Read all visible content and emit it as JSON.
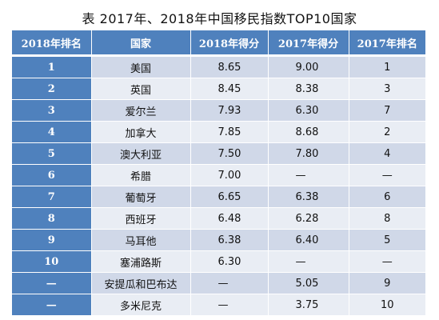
{
  "title": "表  2017年、2018年中国移民指数TOP10国家",
  "table": {
    "headers": [
      "2018年排名",
      "国家",
      "2018年得分",
      "2017年得分",
      "2017年排名"
    ],
    "rows": [
      {
        "rank2018": "1",
        "country": "美国",
        "score2018": "8.65",
        "score2017": "9.00",
        "rank2017": "1"
      },
      {
        "rank2018": "2",
        "country": "英国",
        "score2018": "8.45",
        "score2017": "8.38",
        "rank2017": "3"
      },
      {
        "rank2018": "3",
        "country": "爱尔兰",
        "score2018": "7.93",
        "score2017": "6.30",
        "rank2017": "7"
      },
      {
        "rank2018": "4",
        "country": "加拿大",
        "score2018": "7.85",
        "score2017": "8.68",
        "rank2017": "2"
      },
      {
        "rank2018": "5",
        "country": "澳大利亚",
        "score2018": "7.50",
        "score2017": "7.80",
        "rank2017": "4"
      },
      {
        "rank2018": "6",
        "country": "希腊",
        "score2018": "7.00",
        "score2017": "—",
        "rank2017": "—"
      },
      {
        "rank2018": "7",
        "country": "葡萄牙",
        "score2018": "6.65",
        "score2017": "6.38",
        "rank2017": "6"
      },
      {
        "rank2018": "8",
        "country": "西班牙",
        "score2018": "6.48",
        "score2017": "6.28",
        "rank2017": "8"
      },
      {
        "rank2018": "9",
        "country": "马耳他",
        "score2018": "6.38",
        "score2017": "6.40",
        "rank2017": "5"
      },
      {
        "rank2018": "10",
        "country": "塞浦路斯",
        "score2018": "6.30",
        "score2017": "—",
        "rank2017": "—"
      },
      {
        "rank2018": "—",
        "country": "安提瓜和巴布达",
        "score2018": "—",
        "score2017": "5.05",
        "rank2017": "9"
      },
      {
        "rank2018": "—",
        "country": "多米尼克",
        "score2018": "—",
        "score2017": "3.75",
        "rank2017": "10"
      }
    ]
  },
  "colors": {
    "header_bg": "#4f81bd",
    "row_odd": "#d0d8e8",
    "row_even": "#e9edf4"
  }
}
